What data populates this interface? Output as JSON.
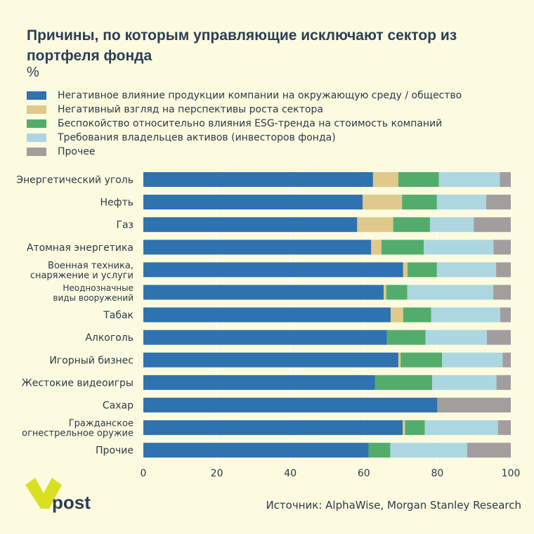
{
  "title": "Причины, по которым управляющие исключают сектор из портфеля фонда",
  "unit": "%",
  "legend": [
    {
      "label": "Негативное влияние продукции компании на окружающую среду / общество",
      "color": "#2f72b0"
    },
    {
      "label": "Негативный взгляд на перспективы роста сектора",
      "color": "#dfc98b"
    },
    {
      "label": "Беспокойство относительно влияния ESG-тренда на стоимость компаний",
      "color": "#52ad6c"
    },
    {
      "label": "Требования владельцев активов (инвесторов фонда)",
      "color": "#acd7e0"
    },
    {
      "label": "Прочее",
      "color": "#a39e9e"
    }
  ],
  "chart_data": {
    "type": "bar",
    "orientation": "horizontal",
    "stacked": true,
    "title": "Причины, по которым управляющие исключают сектор из портфеля фонда",
    "ylabel": "%",
    "xlim": [
      0,
      100
    ],
    "xticks": [
      0,
      20,
      40,
      60,
      80,
      100
    ],
    "categories": [
      [
        "Энергетический уголь"
      ],
      [
        "Нефть"
      ],
      [
        "Газ"
      ],
      [
        "Атомная энергетика"
      ],
      [
        "Военная техника,",
        "снаряжение и услуги"
      ],
      [
        "Неоднозначные",
        "виды вооружений"
      ],
      [
        "Табак"
      ],
      [
        "Алкоголь"
      ],
      [
        "Игорный бизнес"
      ],
      [
        "Жестокие видеоигры"
      ],
      [
        "Сахар"
      ],
      [
        "Гражданское",
        "огнестрельное оружие"
      ],
      [
        "Прочие"
      ]
    ],
    "series": [
      {
        "name": "Негативное влияние продукции компании на окружающую среду / общество",
        "color": "#2f72b0",
        "values": [
          62.5,
          59.7,
          58.2,
          62,
          70.7,
          65.4,
          67.3,
          66.3,
          69.4,
          63,
          80,
          70.6,
          61.3
        ]
      },
      {
        "name": "Негативный взгляд на перспективы роста сектора",
        "color": "#dfc98b",
        "values": [
          6.9,
          10.7,
          9.8,
          2.8,
          1.2,
          0.7,
          3.4,
          0,
          0.6,
          0,
          0,
          0.6,
          0
        ]
      },
      {
        "name": "Беспокойство относительно влияния ESG-тренда на стоимость компаний",
        "color": "#52ad6c",
        "values": [
          11,
          9.5,
          10,
          11.5,
          8,
          5.7,
          7.6,
          10.5,
          11.3,
          15.6,
          0,
          5.4,
          5.9
        ]
      },
      {
        "name": "Требования владельцев активов (инвесторов фонда)",
        "color": "#acd7e0",
        "values": [
          16.6,
          13.4,
          11.9,
          19,
          16.1,
          23.4,
          18.8,
          16.7,
          16.5,
          17.5,
          0,
          19.9,
          20.9
        ]
      },
      {
        "name": "Прочее",
        "color": "#a39e9e",
        "values": [
          3,
          6.7,
          10.1,
          4.7,
          4,
          4.8,
          2.9,
          6.5,
          2.2,
          3.9,
          20,
          3.5,
          11.9
        ]
      }
    ]
  },
  "source": "Источник: AlphaWise, Morgan Stanley Research",
  "logo": {
    "text": "post",
    "color": "#d9e021"
  }
}
